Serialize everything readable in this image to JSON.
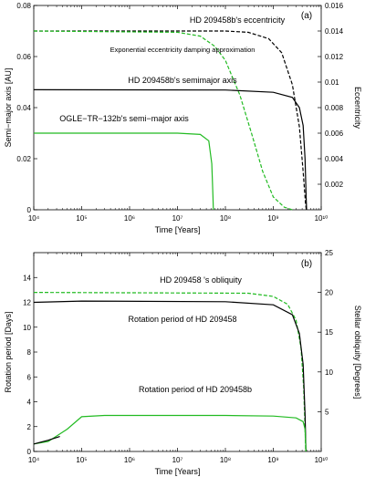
{
  "chart_data": [
    {
      "panel": "(a)",
      "type": "line",
      "xlabel": "Time [Years]",
      "ylabel": "Semi−major axis [AU]",
      "ylabel_right": "Eccentricity",
      "xscale": "log",
      "xlim": [
        10000,
        10000000000
      ],
      "ylim": [
        0,
        0.08
      ],
      "ylim_right": [
        0,
        0.016
      ],
      "x_ticks": [
        "10⁴",
        "10⁵",
        "10⁶",
        "10⁷",
        "10⁸",
        "10⁹",
        "10¹⁰"
      ],
      "y_ticks": [
        "0",
        "0.02",
        "0.04",
        "0.06",
        "0.08"
      ],
      "y_ticks_right": [
        "0.002",
        "0.004",
        "0.006",
        "0.008",
        "0.01",
        "0.012",
        "0.014",
        "0.016"
      ],
      "annotations": [
        "HD 209458b's eccentricity",
        "Exponential eccentricity damping approximation",
        "HD 209458b's semimajor axis",
        "OGLE−TR−132b's semi−major axis"
      ],
      "series": [
        {
          "name": "HD 209458b's eccentricity",
          "axis": "right",
          "color": "#000000",
          "dashed": true,
          "points": [
            [
              10000,
              0.014
            ],
            [
              100000000,
              0.014
            ],
            [
              300000000,
              0.0139
            ],
            [
              800000000,
              0.0134
            ],
            [
              1500000000,
              0.0123
            ],
            [
              2500000000,
              0.0098
            ],
            [
              3500000000,
              0.0065
            ],
            [
              4200000000,
              0.003
            ],
            [
              4700000000,
              0.0005
            ],
            [
              4900000000,
              0.0
            ]
          ]
        },
        {
          "name": "Exponential eccentricity damping approximation",
          "axis": "right",
          "color": "#22bb22",
          "dashed": true,
          "points": [
            [
              10000,
              0.014
            ],
            [
              10000000,
              0.0139
            ],
            [
              30000000,
              0.0136
            ],
            [
              60000000,
              0.0128
            ],
            [
              100000000,
              0.0117
            ],
            [
              200000000,
              0.009
            ],
            [
              350000000,
              0.006
            ],
            [
              600000000,
              0.003
            ],
            [
              1000000000,
              0.001
            ],
            [
              1700000000,
              0.0002
            ],
            [
              2500000000,
              0.0
            ]
          ]
        },
        {
          "name": "HD 209458b's semimajor axis",
          "axis": "left",
          "color": "#000000",
          "dashed": false,
          "points": [
            [
              10000,
              0.047
            ],
            [
              100000000,
              0.0469
            ],
            [
              1000000000,
              0.046
            ],
            [
              2500000000,
              0.044
            ],
            [
              3500000000,
              0.04
            ],
            [
              4200000000,
              0.033
            ],
            [
              4600000000,
              0.02
            ],
            [
              4850000000,
              0.005
            ],
            [
              4950000000,
              0.0
            ]
          ]
        },
        {
          "name": "OGLE−TR−132b's semi−major axis",
          "axis": "left",
          "color": "#22bb22",
          "dashed": false,
          "points": [
            [
              10000,
              0.03
            ],
            [
              10000000,
              0.03
            ],
            [
              30000000,
              0.0295
            ],
            [
              45000000,
              0.027
            ],
            [
              52000000,
              0.018
            ],
            [
              55000000,
              0.005
            ],
            [
              56000000,
              0.0
            ]
          ]
        }
      ]
    },
    {
      "panel": "(b)",
      "type": "line",
      "xlabel": "Time [Years]",
      "ylabel": "Rotation period [Days]",
      "ylabel_right": "Stellar obliquity [Degrees]",
      "xscale": "log",
      "xlim": [
        10000,
        10000000000
      ],
      "ylim": [
        0,
        16
      ],
      "ylim_right": [
        0,
        25
      ],
      "x_ticks": [
        "10⁴",
        "10⁵",
        "10⁶",
        "10⁷",
        "10⁸",
        "10⁹",
        "10¹⁰"
      ],
      "y_ticks": [
        "0",
        "2",
        "4",
        "6",
        "8",
        "10",
        "12",
        "14"
      ],
      "y_ticks_right": [
        "5",
        "10",
        "15",
        "20",
        "25"
      ],
      "annotations": [
        "HD 209458 's obliquity",
        "Rotation period of HD 209458",
        "Rotation period of HD 209458b"
      ],
      "series": [
        {
          "name": "HD 209458 's obliquity",
          "axis": "right",
          "color": "#22bb22",
          "dashed": true,
          "points": [
            [
              10000,
              20.0
            ],
            [
              300000000,
              19.9
            ],
            [
              1000000000,
              19.5
            ],
            [
              2000000000,
              18.5
            ],
            [
              3000000000,
              16.5
            ],
            [
              3800000000,
              13.0
            ],
            [
              4300000000,
              8.0
            ],
            [
              4600000000,
              3.0
            ],
            [
              4750000000,
              0.0
            ]
          ]
        },
        {
          "name": "Rotation period of HD 209458",
          "axis": "left",
          "color": "#000000",
          "dashed": false,
          "points": [
            [
              10000,
              12.0
            ],
            [
              100000,
              12.1
            ],
            [
              100000000,
              12.05
            ],
            [
              1000000000,
              11.8
            ],
            [
              2500000000,
              11.0
            ],
            [
              3500000000,
              9.5
            ],
            [
              4200000000,
              7.0
            ],
            [
              4600000000,
              3.0
            ],
            [
              4800000000,
              0.0
            ]
          ]
        },
        {
          "name": "Rotation period of HD 209458b",
          "axis": "left",
          "color": "#22bb22",
          "dashed": false,
          "points": [
            [
              10000,
              0.6
            ],
            [
              20000,
              0.8
            ],
            [
              50000,
              1.8
            ],
            [
              100000,
              2.8
            ],
            [
              300000,
              2.9
            ],
            [
              100000000,
              2.9
            ],
            [
              1000000000,
              2.85
            ],
            [
              3000000000,
              2.7
            ],
            [
              4200000000,
              2.4
            ],
            [
              4600000000,
              1.8
            ],
            [
              4800000000,
              0.0
            ]
          ]
        },
        {
          "name": "HD 209458 rotation period (early)",
          "axis": "left",
          "color": "#000000",
          "dashed": false,
          "points": [
            [
              10000,
              0.6
            ],
            [
              20000,
              0.9
            ],
            [
              35000,
              1.2
            ]
          ]
        }
      ]
    }
  ]
}
